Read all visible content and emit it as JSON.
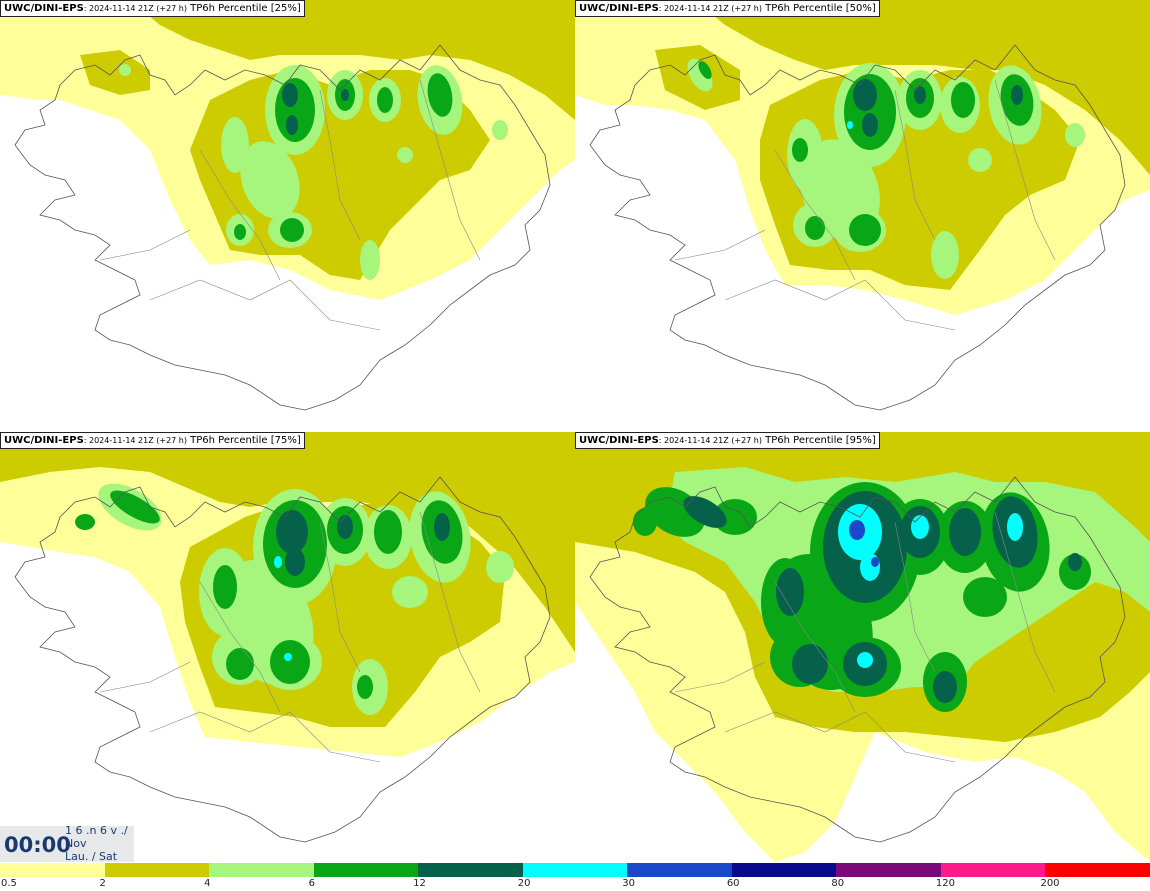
{
  "panels": [
    {
      "model": "UWC/DINI-EPS",
      "run": ": 2024-11-14 21Z (+27 h)",
      "product": " TP6h Percentile [25%]",
      "level": 0
    },
    {
      "model": "UWC/DINI-EPS",
      "run": ": 2024-11-14 21Z (+27 h)",
      "product": " TP6h Percentile [50%]",
      "level": 1
    },
    {
      "model": "UWC/DINI-EPS",
      "run": ": 2024-11-14 21Z (+27 h)",
      "product": " TP6h Percentile [75%]",
      "level": 2
    },
    {
      "model": "UWC/DINI-EPS",
      "run": ": 2024-11-14 21Z (+27 h)",
      "product": " TP6h Percentile [95%]",
      "level": 3
    }
  ],
  "time": {
    "clock": "00:00",
    "day": "1 6 .n 6 v ./",
    "month": "Nov",
    "weekday": "Lau. / Sat"
  },
  "legend": {
    "bins": [
      {
        "label": "0.5",
        "color": "#ffff99"
      },
      {
        "label": "2",
        "color": "#cccc00"
      },
      {
        "label": "4",
        "color": "#a6f57d"
      },
      {
        "label": "6",
        "color": "#09a717"
      },
      {
        "label": "12",
        "color": "#06614a"
      },
      {
        "label": "20",
        "color": "#00ffff"
      },
      {
        "label": "30",
        "color": "#1a48c8"
      },
      {
        "label": "60",
        "color": "#0a0a8c"
      },
      {
        "label": "80",
        "color": "#7a0a7a"
      },
      {
        "label": "120",
        "color": "#ff1a8c"
      },
      {
        "label": "200",
        "color": "#ff0000"
      }
    ]
  }
}
